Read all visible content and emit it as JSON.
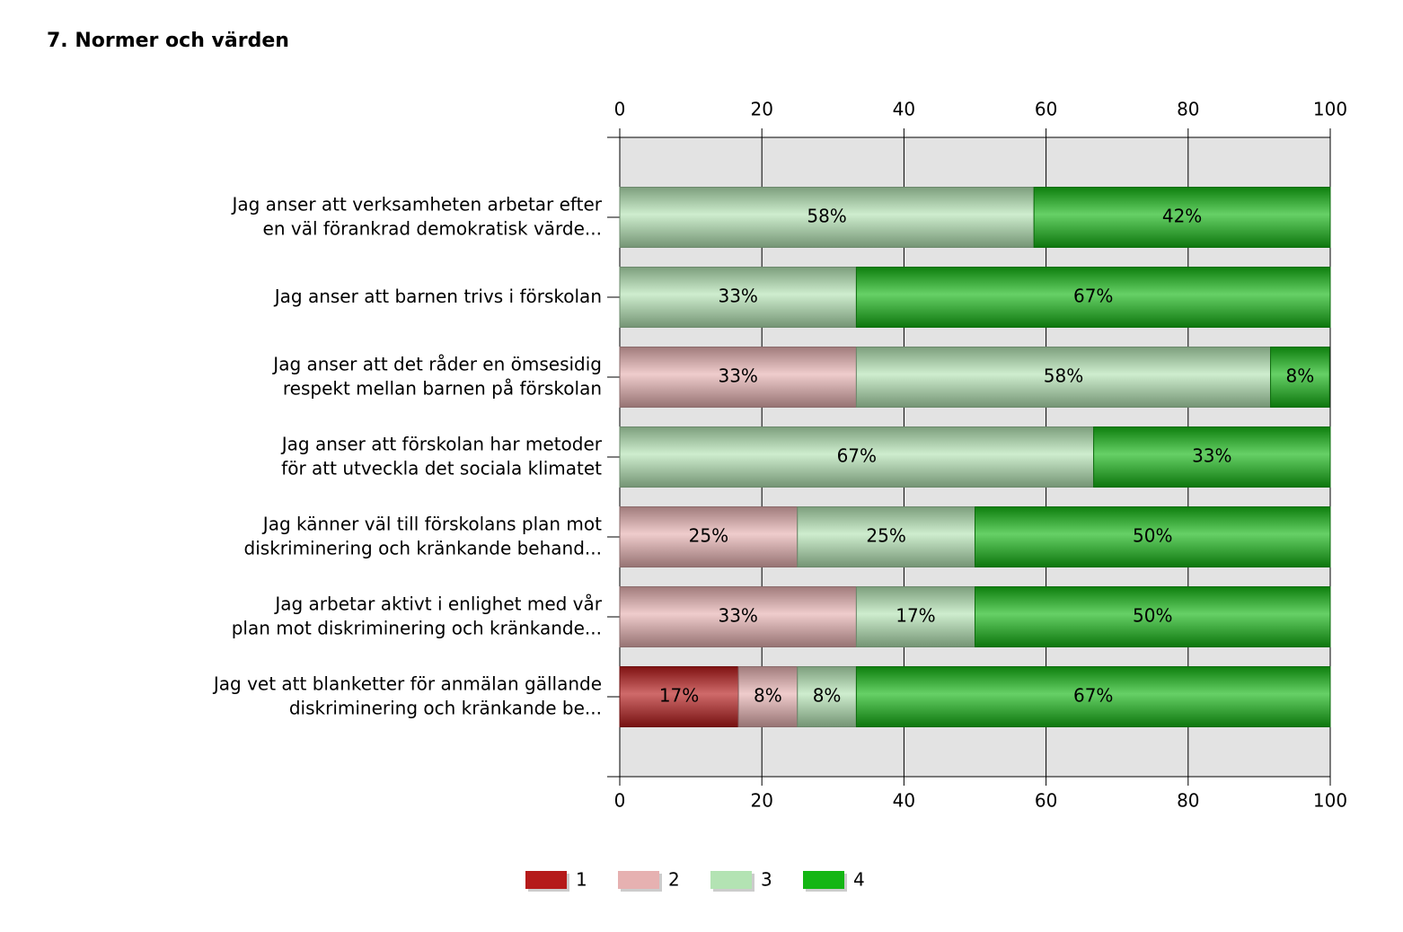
{
  "chart_data": {
    "type": "stacked-bar-horizontal",
    "title": "7. Normer och värden",
    "categories": [
      "Jag anser att verksamheten arbetar efter\nen väl förankrad demokratisk värde...",
      "Jag anser att barnen trivs i förskolan",
      "Jag anser att det råder en ömsesidig\nrespekt mellan barnen på förskolan",
      "Jag anser att förskolan har metoder\nför att utveckla det sociala klimatet",
      "Jag känner väl till förskolans plan mot\ndiskriminering och kränkande behand...",
      "Jag arbetar aktivt i enlighet med vår\nplan mot diskriminering och kränkande...",
      "Jag vet att blanketter för anmälan gällande\ndiskriminering och kränkande be..."
    ],
    "series": [
      {
        "name": "1",
        "color": "#b51a1a",
        "values": [
          null,
          null,
          null,
          null,
          null,
          null,
          16.7
        ],
        "value_labels": [
          null,
          null,
          null,
          null,
          null,
          null,
          "17%"
        ]
      },
      {
        "name": "2",
        "color": "#e6b1b1",
        "values": [
          null,
          null,
          33.3,
          null,
          25,
          33.3,
          8.3
        ],
        "value_labels": [
          null,
          null,
          "33%",
          null,
          "25%",
          "33%",
          "8%"
        ]
      },
      {
        "name": "3",
        "color": "#b3e3b3",
        "values": [
          58.3,
          33.3,
          58.3,
          66.7,
          25,
          16.7,
          8.3
        ],
        "value_labels": [
          "58%",
          "33%",
          "58%",
          "67%",
          "25%",
          "17%",
          "8%"
        ]
      },
      {
        "name": "4",
        "color": "#14b614",
        "values": [
          41.7,
          66.7,
          8.3,
          33.3,
          50,
          50,
          66.7
        ],
        "value_labels": [
          "42%",
          "67%",
          "8%",
          "33%",
          "50%",
          "50%",
          "67%"
        ]
      }
    ],
    "xlim": [
      0,
      100
    ],
    "xticks": [
      0,
      20,
      40,
      60,
      80,
      100
    ],
    "grid": true,
    "legend": "bottom"
  }
}
